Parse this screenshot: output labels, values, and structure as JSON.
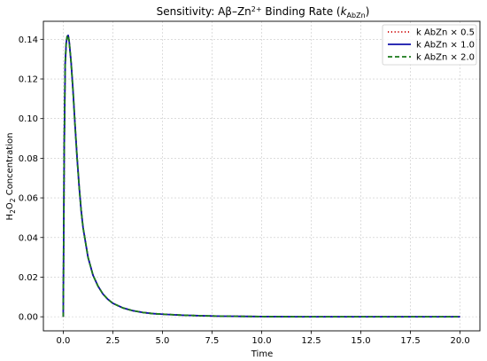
{
  "chart_data": {
    "type": "line",
    "title_main": "Sensitivity: Aβ–Zn",
    "title_sup": "2+",
    "title_tail": " Binding Rate (",
    "title_k": "k",
    "title_sub": "AbZn",
    "title_close": ")",
    "xlabel": "Time",
    "ylabel_a": "H",
    "ylabel_sub1": "2",
    "ylabel_b": "O",
    "ylabel_sub2": "2",
    "ylabel_c": " Concentration",
    "xlim": [
      -1.0,
      21.0
    ],
    "ylim": [
      -0.0071,
      0.1491
    ],
    "xticks": [
      0.0,
      2.5,
      5.0,
      7.5,
      10.0,
      12.5,
      15.0,
      17.5,
      20.0
    ],
    "xtick_labels": [
      "0.0",
      "2.5",
      "5.0",
      "7.5",
      "10.0",
      "12.5",
      "15.0",
      "17.5",
      "20.0"
    ],
    "yticks": [
      0.0,
      0.02,
      0.04,
      0.06,
      0.08,
      0.1,
      0.12,
      0.14
    ],
    "ytick_labels": [
      "0.00",
      "0.02",
      "0.04",
      "0.06",
      "0.08",
      "0.10",
      "0.12",
      "0.14"
    ],
    "grid": true,
    "legend_position": "top-right",
    "x": [
      0.0,
      0.05,
      0.1,
      0.15,
      0.2,
      0.25,
      0.3,
      0.4,
      0.5,
      0.6,
      0.7,
      0.8,
      0.9,
      1.0,
      1.25,
      1.5,
      1.75,
      2.0,
      2.25,
      2.5,
      3.0,
      3.5,
      4.0,
      4.5,
      5.0,
      6.0,
      7.0,
      8.0,
      9.0,
      10.0,
      12.0,
      14.0,
      16.0,
      18.0,
      20.0
    ],
    "series": [
      {
        "name": "k AbZn × 0.5",
        "color": "#cc0000",
        "dash": "1.2,2.6",
        "width": 1.8,
        "values": [
          0.0,
          0.085,
          0.128,
          0.138,
          0.1415,
          0.142,
          0.139,
          0.128,
          0.113,
          0.096,
          0.08,
          0.066,
          0.054,
          0.045,
          0.03,
          0.021,
          0.0155,
          0.0115,
          0.0088,
          0.0068,
          0.0045,
          0.0031,
          0.0022,
          0.0016,
          0.0013,
          0.0008,
          0.0005,
          0.0003,
          0.0002,
          0.0001,
          0.0,
          0.0,
          0.0,
          0.0,
          0.0
        ]
      },
      {
        "name": "k AbZn × 1.0",
        "color": "#1010aa",
        "dash": "",
        "width": 1.8,
        "values": [
          0.0,
          0.085,
          0.128,
          0.138,
          0.1415,
          0.142,
          0.139,
          0.128,
          0.113,
          0.096,
          0.08,
          0.066,
          0.054,
          0.045,
          0.03,
          0.021,
          0.0155,
          0.0115,
          0.0088,
          0.0068,
          0.0045,
          0.0031,
          0.0022,
          0.0016,
          0.0013,
          0.0008,
          0.0005,
          0.0003,
          0.0002,
          0.0001,
          0.0,
          0.0,
          0.0,
          0.0,
          0.0
        ]
      },
      {
        "name": "k AbZn × 2.0",
        "color": "#1a7a1a",
        "dash": "5,3",
        "width": 1.8,
        "values": [
          0.0,
          0.085,
          0.128,
          0.138,
          0.1415,
          0.142,
          0.139,
          0.128,
          0.113,
          0.096,
          0.08,
          0.066,
          0.054,
          0.045,
          0.03,
          0.021,
          0.0155,
          0.0115,
          0.0088,
          0.0068,
          0.0045,
          0.0031,
          0.0022,
          0.0016,
          0.0013,
          0.0008,
          0.0005,
          0.0003,
          0.0002,
          0.0001,
          0.0,
          0.0,
          0.0,
          0.0,
          0.0
        ]
      }
    ]
  }
}
